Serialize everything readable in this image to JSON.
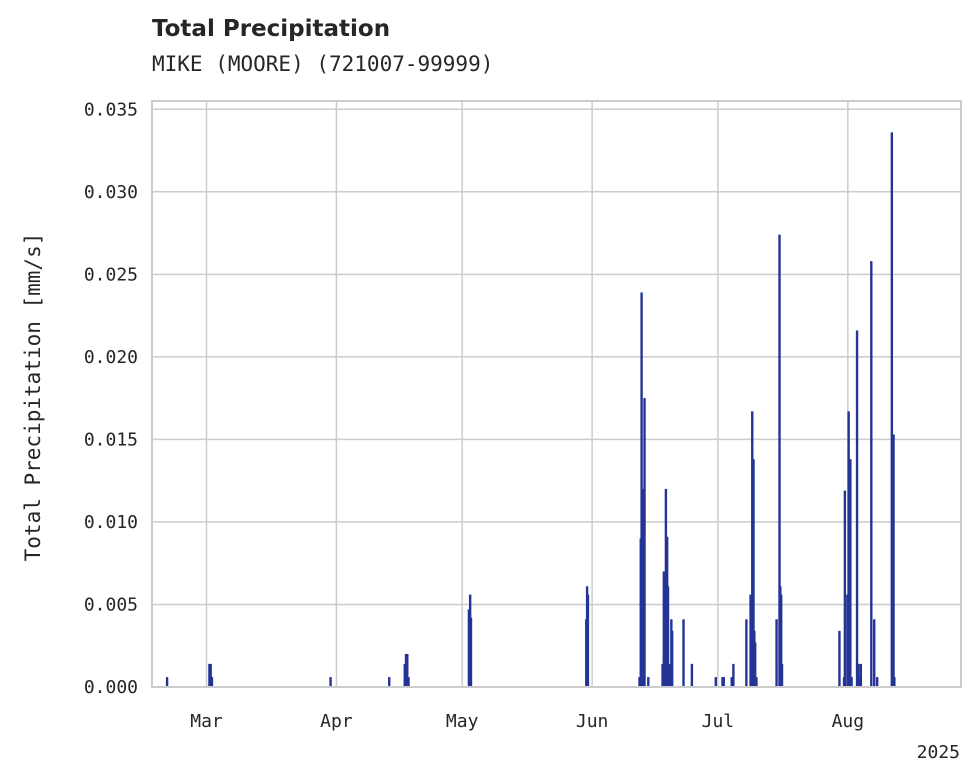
{
  "chart_data": {
    "type": "bar",
    "title": "Total Precipitation",
    "subtitle": "MIKE (MOORE) (721007-99999)",
    "xlabel": "",
    "ylabel": "Total Precipitation [mm/s]",
    "year_label": "2025",
    "x_range_day_of_year": [
      47.0,
      240.0
    ],
    "ylim": [
      0,
      0.0355
    ],
    "y_ticks": [
      0.0,
      0.005,
      0.01,
      0.015,
      0.02,
      0.025,
      0.03,
      0.035
    ],
    "y_tick_labels": [
      "0.000",
      "0.005",
      "0.010",
      "0.015",
      "0.020",
      "0.025",
      "0.030",
      "0.035"
    ],
    "x_ticks": [
      {
        "day": 60,
        "label": "Mar"
      },
      {
        "day": 91,
        "label": "Apr"
      },
      {
        "day": 121,
        "label": "May"
      },
      {
        "day": 152,
        "label": "Jun"
      },
      {
        "day": 182,
        "label": "Jul"
      },
      {
        "day": 213,
        "label": "Aug"
      }
    ],
    "grid": true,
    "bar_color": "#253494",
    "bar_width_days": 0.45,
    "series": [
      {
        "name": "Total Precipitation",
        "x_day_of_year": [
          50.6,
          60.7,
          61.0,
          61.3,
          89.6,
          103.6,
          107.3,
          107.6,
          107.9,
          108.2,
          122.6,
          122.9,
          123.1,
          150.6,
          150.8,
          151.0,
          163.3,
          163.6,
          163.8,
          164.0,
          164.2,
          164.5,
          165.4,
          168.8,
          169.1,
          169.4,
          169.6,
          169.9,
          170.1,
          170.5,
          170.9,
          171.1,
          173.8,
          175.8,
          181.5,
          183.1,
          183.4,
          185.3,
          185.7,
          188.8,
          189.8,
          190.2,
          190.5,
          190.7,
          190.9,
          191.2,
          196.0,
          196.7,
          196.9,
          197.1,
          197.3,
          211.0,
          212.1,
          212.3,
          212.9,
          213.2,
          213.6,
          213.9,
          215.2,
          215.5,
          215.8,
          216.1,
          218.6,
          219.3,
          220.0,
          223.5,
          223.9,
          224.1
        ],
        "values": [
          0.0006,
          0.0014,
          0.0014,
          0.0006,
          0.0006,
          0.0006,
          0.0014,
          0.002,
          0.002,
          0.0006,
          0.0047,
          0.0056,
          0.0042,
          0.0041,
          0.0061,
          0.0056,
          0.0006,
          0.009,
          0.0239,
          0.012,
          0.007,
          0.0175,
          0.0006,
          0.0014,
          0.007,
          0.0068,
          0.012,
          0.0091,
          0.0061,
          0.0014,
          0.0041,
          0.0034,
          0.0041,
          0.0014,
          0.0006,
          0.0006,
          0.0006,
          0.0006,
          0.0014,
          0.0041,
          0.0056,
          0.0167,
          0.0138,
          0.0034,
          0.0027,
          0.0006,
          0.0041,
          0.0274,
          0.0061,
          0.0056,
          0.0014,
          0.0034,
          0.0006,
          0.0119,
          0.0056,
          0.0167,
          0.0138,
          0.0006,
          0.0216,
          0.0014,
          0.0006,
          0.0014,
          0.0258,
          0.0041,
          0.0006,
          0.0336,
          0.0153,
          0.0006
        ]
      }
    ]
  }
}
